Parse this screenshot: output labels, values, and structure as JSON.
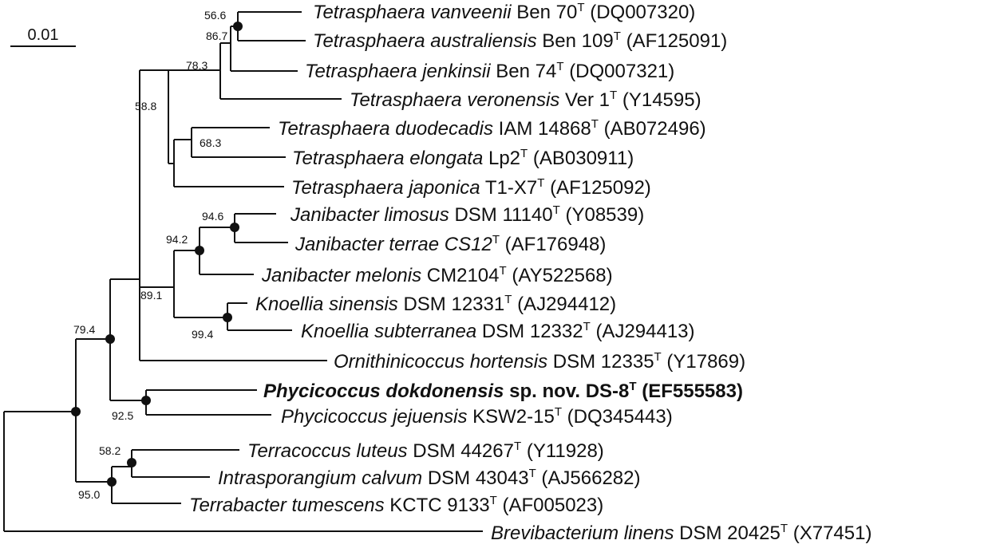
{
  "scale_bar": {
    "label": "0.01"
  },
  "taxa": [
    {
      "genus": "Tetrasphaera",
      "species": "vanveenii",
      "strain": "Ben 70",
      "type_mark": "T",
      "accession": "(DQ007320)"
    },
    {
      "genus": "Tetrasphaera",
      "species": "australiensis",
      "strain": "Ben 109",
      "type_mark": "T",
      "accession": "(AF125091)"
    },
    {
      "genus": "Tetrasphaera",
      "species": "jenkinsii",
      "strain": "Ben 74",
      "type_mark": "T",
      "accession": "(DQ007321)"
    },
    {
      "genus": "Tetrasphaera",
      "species": "veronensis",
      "strain": "Ver 1",
      "type_mark": "T",
      "accession": "(Y14595)"
    },
    {
      "genus": "Tetrasphaera",
      "species": "duodecadis",
      "strain": "IAM 14868",
      "type_mark": "T",
      "accession": "(AB072496)"
    },
    {
      "genus": "Tetrasphaera",
      "species": "elongata",
      "strain": "Lp2",
      "type_mark": "T",
      "accession": "(AB030911)"
    },
    {
      "genus": "Tetrasphaera",
      "species": "japonica",
      "strain": "T1-X7",
      "type_mark": "T",
      "accession": "(AF125092)"
    },
    {
      "genus": "Janibacter",
      "species": "limosus",
      "strain": "DSM 11140",
      "type_mark": "T",
      "accession": "(Y08539)"
    },
    {
      "genus": "Janibacter",
      "species": "terrae CS12",
      "strain": "",
      "type_mark": "T",
      "accession": "(AF176948)"
    },
    {
      "genus": "Janibacter",
      "species": "melonis",
      "strain": "CM2104",
      "type_mark": "T",
      "accession": "(AY522568)"
    },
    {
      "genus": "Knoellia",
      "species": "sinensis",
      "strain": "DSM 12331",
      "type_mark": "T",
      "accession": "(AJ294412)"
    },
    {
      "genus": "Knoellia",
      "species": "subterranea",
      "strain": "DSM 12332",
      "type_mark": "T",
      "accession": "(AJ294413)"
    },
    {
      "genus": "Ornithinicoccus",
      "species": "hortensis",
      "strain": "DSM 12335",
      "type_mark": "T",
      "accession": "(Y17869)"
    },
    {
      "genus": "Phycicoccus",
      "species": "dokdonensis",
      "strain": "sp. nov. DS-8",
      "type_mark": "T",
      "accession": "(EF555583)"
    },
    {
      "genus": "Phycicoccus",
      "species": "jejuensis",
      "strain": "KSW2-15",
      "type_mark": "T",
      "accession": "(DQ345443)"
    },
    {
      "genus": "Terracoccus",
      "species": "luteus",
      "strain": "DSM 44267",
      "type_mark": "T",
      "accession": "(Y11928)"
    },
    {
      "genus": "Intrasporangium",
      "species": "calvum",
      "strain": "DSM 43043",
      "type_mark": "T",
      "accession": "(AJ566282)"
    },
    {
      "genus": "Terrabacter",
      "species": "tumescens",
      "strain": "KCTC 9133",
      "type_mark": "T",
      "accession": "(AF005023)"
    },
    {
      "genus": "Brevibacterium",
      "species": "linens",
      "strain": "DSM 20425",
      "type_mark": "T",
      "accession": "(X77451)"
    }
  ],
  "bootstrap": {
    "n56_6": "56.6",
    "n86_7": "86.7",
    "n78_3": "78.3",
    "n58_8": "58.8",
    "n68_3": "68.3",
    "n94_6": "94.6",
    "n94_2": "94.2",
    "n89_1": "89.1",
    "n99_4": "99.4",
    "n79_4": "79.4",
    "n92_5": "92.5",
    "n58_2": "58.2",
    "n95_0": "95.0"
  }
}
